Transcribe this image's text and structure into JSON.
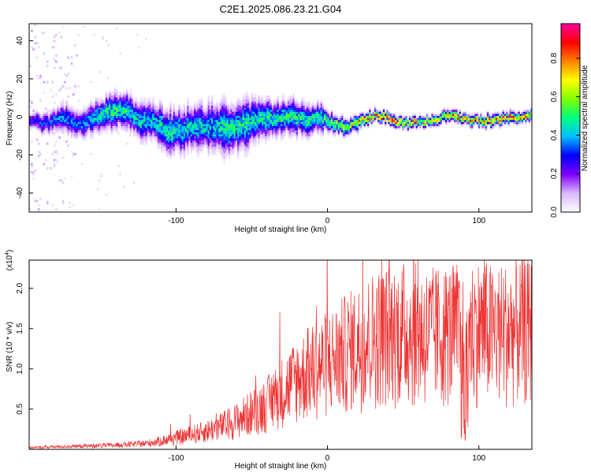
{
  "title": "C2E1.2025.086.23.21.G04",
  "chart_data": [
    {
      "type": "heatmap",
      "xlabel": "Height of straight line (km)",
      "ylabel": "Frequency (Hz)",
      "xlim": [
        -197,
        135
      ],
      "ylim": [
        -50,
        49
      ],
      "xticks": [
        -100,
        0,
        100
      ],
      "yticks": [
        -40,
        -20,
        0,
        20,
        40
      ],
      "colorbar": {
        "label": "Normalized spectral amplitude",
        "range": [
          0,
          0.98
        ],
        "ticks": [
          "0.0",
          "0.2",
          "0.4",
          "0.6",
          "0.8"
        ],
        "tick_values": [
          0,
          0.2,
          0.4,
          0.6,
          0.8
        ],
        "colors": [
          "#ffffff",
          "#d9b8ff",
          "#8000ff",
          "#0000ff",
          "#00c0ff",
          "#00ff80",
          "#80ff00",
          "#ffff00",
          "#ff8000",
          "#ff0000",
          "#ff00a0"
        ]
      },
      "ridge": {
        "x": [
          -197,
          -185,
          -175,
          -165,
          -155,
          -145,
          -135,
          -125,
          -115,
          -105,
          -95,
          -85,
          -75,
          -65,
          -55,
          -45,
          -35,
          -25,
          -15,
          -5,
          0,
          5,
          10,
          20,
          30,
          40,
          50,
          60,
          70,
          80,
          90,
          100,
          110,
          120,
          135
        ],
        "freq": [
          -2,
          -3,
          1,
          -4,
          0,
          3,
          4,
          -1,
          -2,
          -8,
          -6,
          -4,
          -5,
          -6,
          -3,
          0,
          -1,
          1,
          -2,
          1,
          -2,
          -3,
          -5,
          -2,
          1,
          0,
          -3,
          -2,
          -1,
          1,
          0,
          -2,
          -1,
          0,
          1
        ],
        "amplitude": [
          0.3,
          0.35,
          0.4,
          0.35,
          0.45,
          0.5,
          0.5,
          0.45,
          0.45,
          0.5,
          0.45,
          0.45,
          0.45,
          0.5,
          0.5,
          0.5,
          0.5,
          0.5,
          0.5,
          0.5,
          0.55,
          0.6,
          0.65,
          0.75,
          0.85,
          0.9,
          0.8,
          0.7,
          0.75,
          0.75,
          0.8,
          0.75,
          0.8,
          0.85,
          0.75
        ],
        "spread": [
          3,
          4,
          5,
          5,
          6,
          6,
          6,
          7,
          7,
          8,
          8,
          8,
          9,
          10,
          9,
          7,
          6,
          6,
          6,
          5,
          4,
          3,
          3,
          2.5,
          2,
          2,
          2,
          2,
          2,
          2,
          2,
          2,
          2,
          2,
          2
        ]
      }
    },
    {
      "type": "line",
      "xlabel": "Height of straight line (km)",
      "ylabel": "SNR (10 * v/v)",
      "yscale_label": "(x10",
      "yscale_exp": "4",
      "xlim": [
        -197,
        135
      ],
      "ylim": [
        0,
        2.35
      ],
      "xticks": [
        -100,
        0,
        100
      ],
      "yticks": [
        0.5,
        1.0,
        1.5,
        2.0
      ],
      "ytick_labels": [
        "0.5",
        "1.0",
        "1.5",
        "2.0"
      ],
      "color": "#ee3333",
      "envelope": {
        "x": [
          -197,
          -180,
          -160,
          -140,
          -120,
          -110,
          -100,
          -90,
          -80,
          -70,
          -60,
          -50,
          -40,
          -30,
          -20,
          -10,
          0,
          10,
          20,
          30,
          40,
          50,
          60,
          70,
          80,
          90,
          100,
          110,
          120,
          135
        ],
        "y": [
          0.02,
          0.03,
          0.04,
          0.05,
          0.07,
          0.1,
          0.14,
          0.18,
          0.22,
          0.28,
          0.35,
          0.45,
          0.55,
          0.7,
          0.85,
          0.95,
          1.05,
          1.15,
          1.25,
          1.35,
          1.4,
          1.42,
          1.4,
          1.38,
          1.4,
          1.42,
          1.45,
          1.4,
          1.42,
          1.45
        ]
      }
    }
  ]
}
